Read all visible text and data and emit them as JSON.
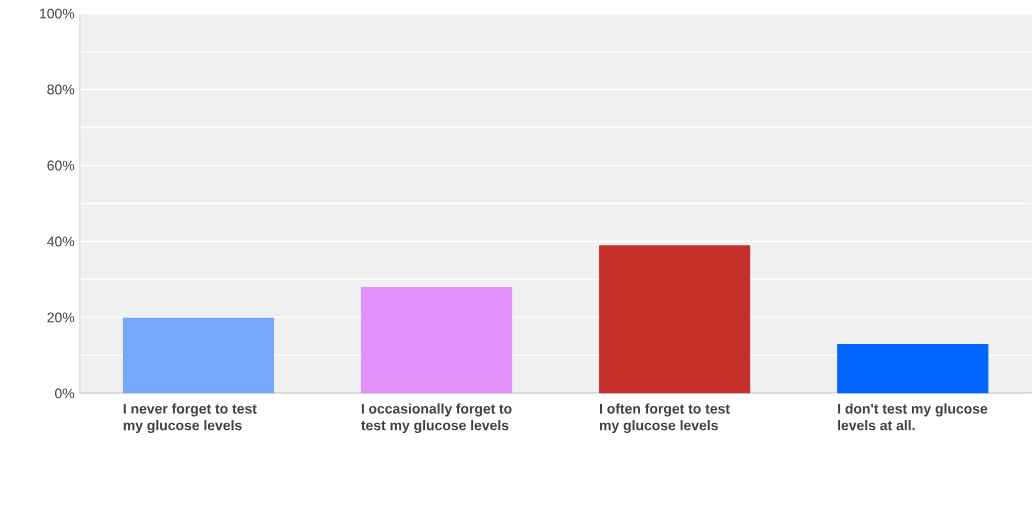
{
  "chart_data": {
    "type": "bar",
    "categories": [
      "I never forget to test my glucose levels",
      "I occasionally forget to test my glucose levels",
      "I often forget to test my glucose levels",
      "I don't test my glucose levels at all."
    ],
    "values": [
      20,
      28,
      39,
      13
    ],
    "colors": [
      "#76a7fa",
      "#e292fa",
      "#c5312a",
      "#0066ff"
    ],
    "ylim": [
      0,
      100
    ],
    "yticks": [
      {
        "value": 0,
        "label": "0%"
      },
      {
        "value": 10,
        "label": null
      },
      {
        "value": 20,
        "label": "20%"
      },
      {
        "value": 30,
        "label": null
      },
      {
        "value": 40,
        "label": "40%"
      },
      {
        "value": 50,
        "label": null
      },
      {
        "value": 60,
        "label": "60%"
      },
      {
        "value": 70,
        "label": null
      },
      {
        "value": 80,
        "label": "80%"
      },
      {
        "value": 90,
        "label": null
      },
      {
        "value": 100,
        "label": "100%"
      }
    ],
    "grid": "y"
  }
}
